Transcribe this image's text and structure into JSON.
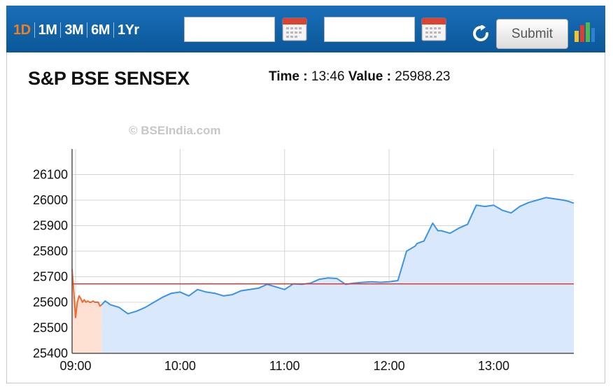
{
  "toolbar": {
    "ranges": [
      "1D",
      "1M",
      "3M",
      "6M",
      "1Yr"
    ],
    "active_range": "1D",
    "from_date": "",
    "to_date": "",
    "submit_label": "Submit"
  },
  "header": {
    "index_name": "S&P BSE SENSEX",
    "time_label": "Time :",
    "time_value": "13:46",
    "value_label": "Value :",
    "value_value": "25988.23"
  },
  "watermark": "© BSEIndia.com",
  "colors": {
    "toolbar_bg": "#0b5ea8",
    "active_tab": "#f07f1f",
    "series_line": "#3b93e4",
    "series_fill": "#d9e9fb",
    "preopen_line": "#ef6a2a",
    "preopen_fill": "#fde0d2",
    "prev_close_line": "#e53935"
  },
  "chart_data": {
    "type": "line",
    "title": "",
    "xlabel": "",
    "ylabel": "",
    "x_ticks": [
      "09:00",
      "10:00",
      "11:00",
      "12:00",
      "13:00"
    ],
    "y_ticks": [
      25400,
      25500,
      25600,
      25700,
      25800,
      25900,
      26000,
      26100
    ],
    "ylim": [
      25400,
      26200
    ],
    "xlim": [
      "08:58",
      "13:46"
    ],
    "grid": true,
    "previous_close": 25672,
    "series": [
      {
        "segment": "pre-open",
        "x": [
          "08:58",
          "08:59",
          "09:00",
          "09:01",
          "09:02",
          "09:03",
          "09:04",
          "09:05",
          "09:06",
          "09:07",
          "09:08",
          "09:09",
          "09:10",
          "09:11",
          "09:12",
          "09:13",
          "09:14",
          "09:15"
        ],
        "values": [
          25730,
          25640,
          25540,
          25600,
          25625,
          25615,
          25600,
          25610,
          25600,
          25605,
          25600,
          25600,
          25605,
          25600,
          25600,
          25600,
          25585,
          25590
        ]
      },
      {
        "segment": "session",
        "x": [
          "09:15",
          "09:17",
          "09:20",
          "09:25",
          "09:30",
          "09:35",
          "09:40",
          "09:45",
          "09:50",
          "09:55",
          "10:00",
          "10:05",
          "10:10",
          "10:15",
          "10:20",
          "10:25",
          "10:30",
          "10:35",
          "10:40",
          "10:45",
          "10:50",
          "10:55",
          "11:00",
          "11:05",
          "11:10",
          "11:15",
          "11:20",
          "11:25",
          "11:30",
          "11:35",
          "11:40",
          "11:45",
          "11:50",
          "11:55",
          "12:00",
          "12:05",
          "12:10",
          "12:15",
          "12:16",
          "12:20",
          "12:25",
          "12:28",
          "12:30",
          "12:35",
          "12:40",
          "12:45",
          "12:50",
          "12:55",
          "13:00",
          "13:05",
          "13:10",
          "13:15",
          "13:20",
          "13:25",
          "13:30",
          "13:35",
          "13:40",
          "13:43",
          "13:46"
        ],
        "values": [
          25590,
          25605,
          25590,
          25580,
          25555,
          25565,
          25580,
          25600,
          25620,
          25635,
          25640,
          25625,
          25650,
          25640,
          25635,
          25625,
          25630,
          25645,
          25650,
          25655,
          25670,
          25660,
          25650,
          25672,
          25670,
          25675,
          25690,
          25695,
          25693,
          25670,
          25675,
          25678,
          25680,
          25678,
          25680,
          25685,
          25800,
          25820,
          25830,
          25840,
          25910,
          25880,
          25880,
          25870,
          25890,
          25905,
          25980,
          25975,
          25980,
          25960,
          25950,
          25975,
          25990,
          26000,
          26010,
          26005,
          26000,
          25995,
          25988
        ]
      }
    ]
  }
}
